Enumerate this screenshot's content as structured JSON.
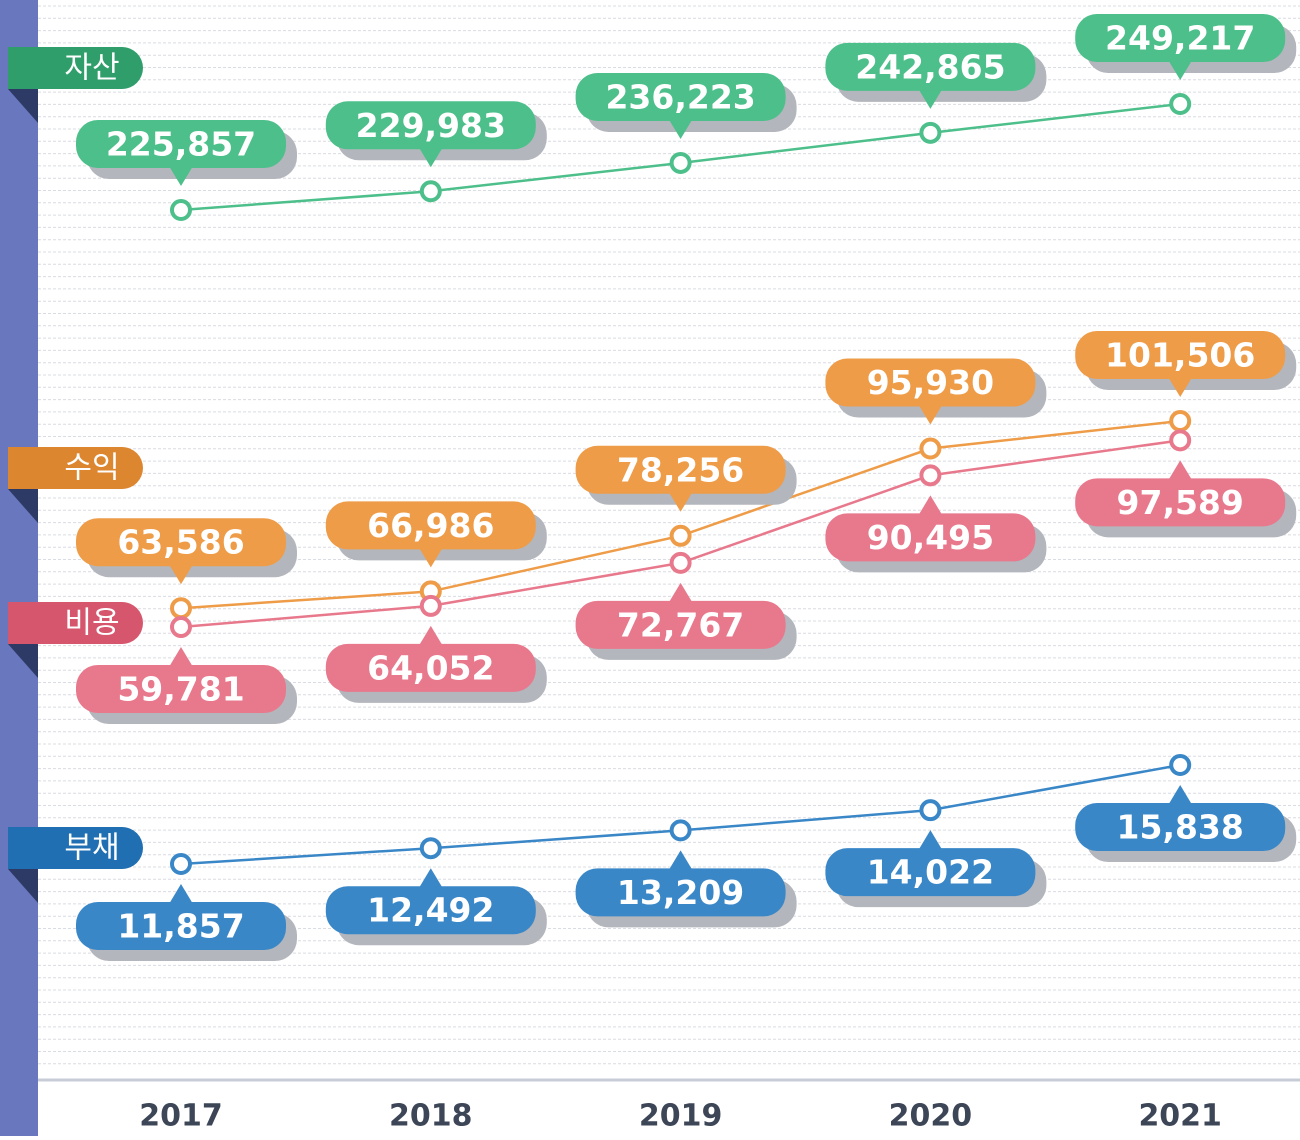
{
  "chart_data": {
    "type": "line",
    "categories": [
      "2017",
      "2018",
      "2019",
      "2020",
      "2021"
    ],
    "series": [
      {
        "name": "자산",
        "color": "#4dbf8a",
        "values": [
          225857,
          229983,
          236223,
          242865,
          249217
        ],
        "value_labels": [
          "225,857",
          "229,983",
          "236,223",
          "242,865",
          "249,217"
        ]
      },
      {
        "name": "수익",
        "color": "#ee9c48",
        "values": [
          63586,
          66986,
          78256,
          95930,
          101506
        ],
        "value_labels": [
          "63,586",
          "66,986",
          "78,256",
          "95,930",
          "101,506"
        ]
      },
      {
        "name": "비용",
        "color": "#e8788c",
        "values": [
          59781,
          64052,
          72767,
          90495,
          97589
        ],
        "value_labels": [
          "59,781",
          "64,052",
          "72,767",
          "90,495",
          "97,589"
        ]
      },
      {
        "name": "부채",
        "color": "#3a87c8",
        "values": [
          11857,
          12492,
          13209,
          14022,
          15838
        ],
        "value_labels": [
          "11,857",
          "12,492",
          "13,209",
          "14,022",
          "15,838"
        ]
      }
    ]
  }
}
